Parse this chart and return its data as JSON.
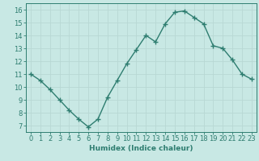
{
  "x": [
    0,
    1,
    2,
    3,
    4,
    5,
    6,
    7,
    8,
    9,
    10,
    11,
    12,
    13,
    14,
    15,
    16,
    17,
    18,
    19,
    20,
    21,
    22,
    23
  ],
  "y": [
    11,
    10.5,
    9.8,
    9.0,
    8.2,
    7.5,
    6.9,
    7.5,
    9.2,
    10.5,
    11.8,
    12.9,
    14.0,
    13.5,
    14.9,
    15.8,
    15.9,
    15.4,
    14.9,
    13.2,
    13.0,
    12.1,
    11.0,
    10.6
  ],
  "line_color": "#2e7d70",
  "marker": "+",
  "marker_size": 4,
  "bg_color": "#c8e8e4",
  "grid_color": "#b8d8d4",
  "xlabel": "Humidex (Indice chaleur)",
  "xlim": [
    -0.5,
    23.5
  ],
  "ylim": [
    6.5,
    16.5
  ],
  "yticks": [
    7,
    8,
    9,
    10,
    11,
    12,
    13,
    14,
    15,
    16
  ],
  "xticks": [
    0,
    1,
    2,
    3,
    4,
    5,
    6,
    7,
    8,
    9,
    10,
    11,
    12,
    13,
    14,
    15,
    16,
    17,
    18,
    19,
    20,
    21,
    22,
    23
  ],
  "label_fontsize": 6.5,
  "tick_fontsize": 6.0
}
